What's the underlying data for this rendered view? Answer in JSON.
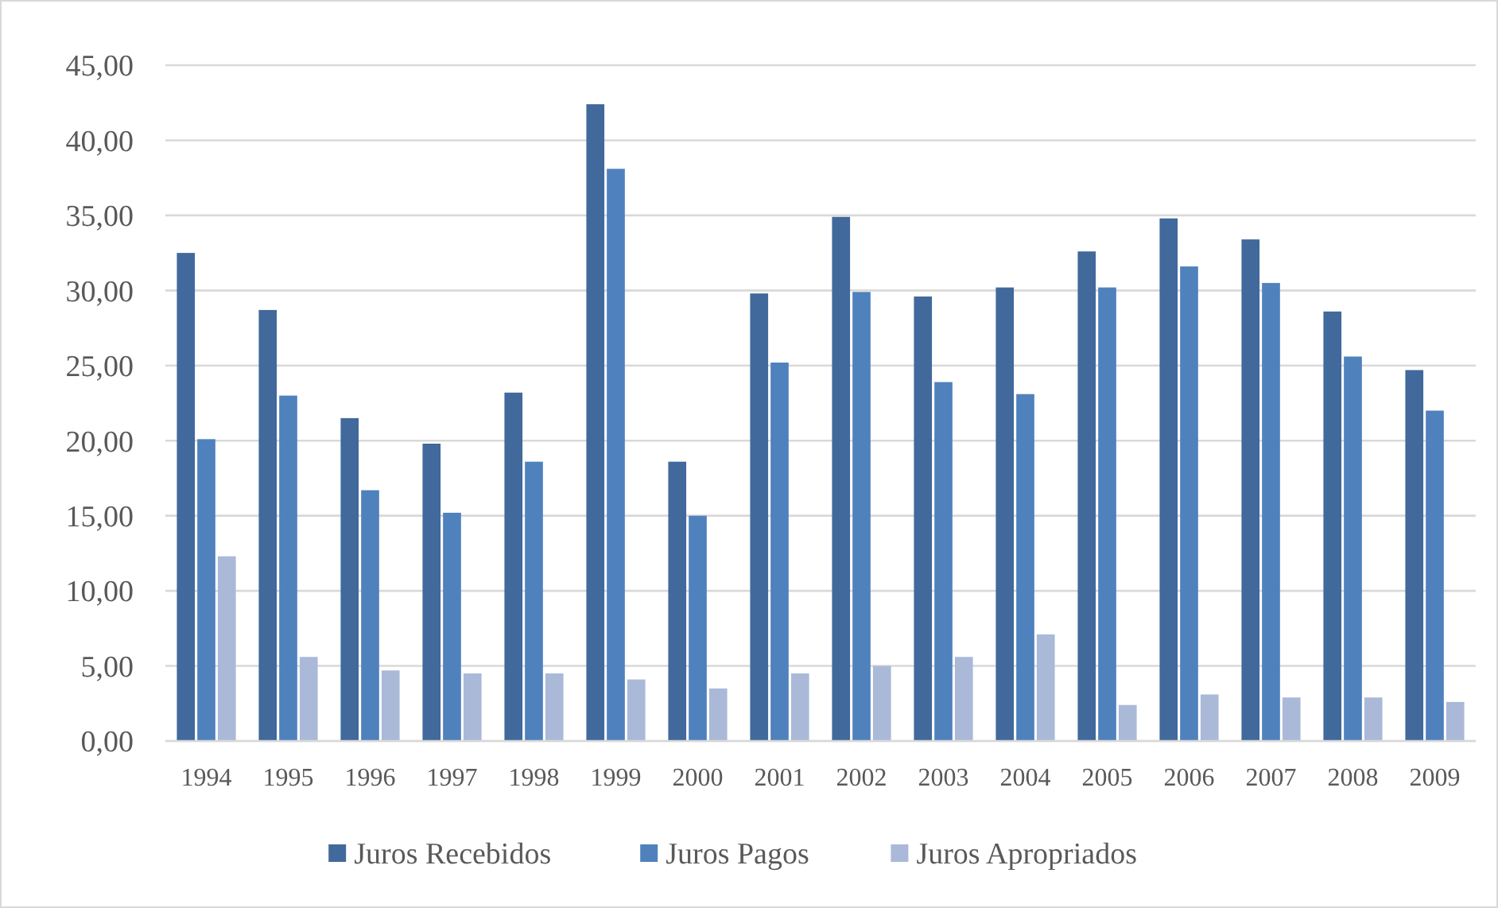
{
  "chart_data": {
    "type": "bar",
    "categories": [
      "1994",
      "1995",
      "1996",
      "1997",
      "1998",
      "1999",
      "2000",
      "2001",
      "2002",
      "2003",
      "2004",
      "2005",
      "2006",
      "2007",
      "2008",
      "2009"
    ],
    "series": [
      {
        "name": "Juros Recebidos",
        "color": "#41699b",
        "values": [
          32.5,
          28.7,
          21.5,
          19.8,
          23.2,
          42.4,
          18.6,
          29.8,
          34.9,
          29.6,
          30.2,
          32.6,
          34.8,
          33.4,
          28.6,
          24.7
        ]
      },
      {
        "name": "Juros Pagos",
        "color": "#4f81bd",
        "values": [
          20.1,
          23.0,
          16.7,
          15.2,
          18.6,
          38.1,
          15.0,
          25.2,
          29.9,
          23.9,
          23.1,
          30.2,
          31.6,
          30.5,
          25.6,
          22.0
        ]
      },
      {
        "name": "Juros Apropriados",
        "color": "#aab9d8",
        "values": [
          12.3,
          5.6,
          4.7,
          4.5,
          4.5,
          4.1,
          3.5,
          4.5,
          5.0,
          5.6,
          7.1,
          2.4,
          3.1,
          2.9,
          2.9,
          2.6
        ]
      }
    ],
    "ylim": [
      0,
      45
    ],
    "yticks": [
      {
        "value": 0,
        "label": "0,00"
      },
      {
        "value": 5,
        "label": "5,00"
      },
      {
        "value": 10,
        "label": "10,00"
      },
      {
        "value": 15,
        "label": "15,00"
      },
      {
        "value": 20,
        "label": "20,00"
      },
      {
        "value": 25,
        "label": "25,00"
      },
      {
        "value": 30,
        "label": "30,00"
      },
      {
        "value": 35,
        "label": "35,00"
      },
      {
        "value": 40,
        "label": "40,00"
      },
      {
        "value": 45,
        "label": "45,00"
      }
    ],
    "grid": "y",
    "legend": "bottom"
  }
}
